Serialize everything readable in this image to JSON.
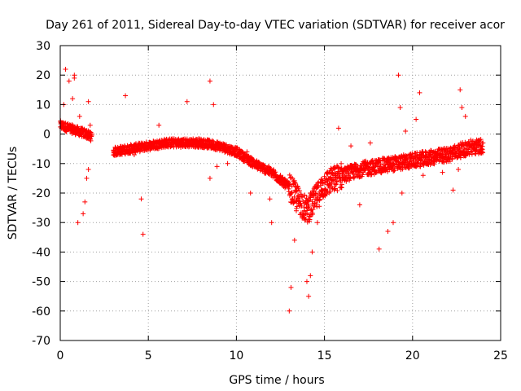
{
  "chart_data": {
    "type": "scatter",
    "title": "Day 261 of 2011, Sidereal Day-to-day VTEC variation (SDTVAR) for receiver acor",
    "xlabel": "GPS time / hours",
    "ylabel": "SDTVAR / TECUs",
    "xlim": [
      0,
      25
    ],
    "ylim": [
      -70,
      30
    ],
    "xticks": [
      0,
      5,
      10,
      15,
      20,
      25
    ],
    "yticks": [
      -70,
      -60,
      -50,
      -40,
      -30,
      -20,
      -10,
      0,
      10,
      20,
      30
    ],
    "grid": true,
    "marker": "+",
    "color": "#ff0000",
    "series": [
      {
        "name": "SDTVAR",
        "trend": [
          [
            0.0,
            3
          ],
          [
            0.5,
            2
          ],
          [
            1.0,
            1
          ],
          [
            1.5,
            0
          ],
          [
            1.8,
            -1
          ],
          [
            3.0,
            -6
          ],
          [
            4.0,
            -5
          ],
          [
            5.0,
            -4
          ],
          [
            6.0,
            -3
          ],
          [
            7.0,
            -3
          ],
          [
            8.0,
            -3
          ],
          [
            9.0,
            -4
          ],
          [
            10.0,
            -6
          ],
          [
            11.0,
            -10
          ],
          [
            12.0,
            -13
          ],
          [
            13.0,
            -18
          ],
          [
            13.5,
            -22
          ],
          [
            14.0,
            -26
          ],
          [
            14.5,
            -22
          ],
          [
            15.0,
            -17
          ],
          [
            16.0,
            -14
          ],
          [
            17.0,
            -12
          ],
          [
            18.0,
            -11
          ],
          [
            19.0,
            -10
          ],
          [
            20.0,
            -9
          ],
          [
            21.0,
            -8
          ],
          [
            22.0,
            -7
          ],
          [
            23.0,
            -5
          ],
          [
            24.0,
            -4
          ]
        ],
        "outliers": [
          [
            0.2,
            10
          ],
          [
            0.3,
            22
          ],
          [
            0.5,
            18
          ],
          [
            0.7,
            12
          ],
          [
            0.8,
            20
          ],
          [
            0.8,
            19
          ],
          [
            1.0,
            -30
          ],
          [
            1.3,
            -27
          ],
          [
            1.4,
            -23
          ],
          [
            1.5,
            -15
          ],
          [
            1.6,
            11
          ],
          [
            1.1,
            6
          ],
          [
            1.7,
            3
          ],
          [
            1.6,
            -12
          ],
          [
            3.7,
            13
          ],
          [
            4.6,
            -22
          ],
          [
            4.7,
            -34
          ],
          [
            4.2,
            -7
          ],
          [
            5.6,
            3
          ],
          [
            7.2,
            11
          ],
          [
            8.5,
            18
          ],
          [
            8.7,
            10
          ],
          [
            8.5,
            -15
          ],
          [
            8.9,
            -11
          ],
          [
            9.5,
            -10
          ],
          [
            10.6,
            -6
          ],
          [
            10.8,
            -20
          ],
          [
            11.9,
            -22
          ],
          [
            12.0,
            -30
          ],
          [
            12.5,
            -14
          ],
          [
            13.0,
            -60
          ],
          [
            13.1,
            -52
          ],
          [
            13.3,
            -36
          ],
          [
            13.4,
            -26
          ],
          [
            14.0,
            -50
          ],
          [
            14.1,
            -55
          ],
          [
            14.2,
            -48
          ],
          [
            14.3,
            -40
          ],
          [
            14.6,
            -30
          ],
          [
            15.8,
            2
          ],
          [
            16.5,
            -4
          ],
          [
            17.0,
            -24
          ],
          [
            17.6,
            -3
          ],
          [
            18.1,
            -39
          ],
          [
            18.6,
            -33
          ],
          [
            18.9,
            -30
          ],
          [
            19.2,
            20
          ],
          [
            19.3,
            9
          ],
          [
            19.6,
            1
          ],
          [
            20.2,
            5
          ],
          [
            20.4,
            14
          ],
          [
            21.2,
            -6
          ],
          [
            22.0,
            -8
          ],
          [
            22.3,
            -19
          ],
          [
            22.6,
            -12
          ],
          [
            22.7,
            15
          ],
          [
            22.8,
            9
          ],
          [
            23.0,
            6
          ],
          [
            23.3,
            -2
          ],
          [
            23.7,
            -4
          ],
          [
            24.0,
            -3
          ],
          [
            19.4,
            -20
          ],
          [
            20.6,
            -14
          ],
          [
            21.7,
            -13
          ]
        ]
      }
    ]
  }
}
